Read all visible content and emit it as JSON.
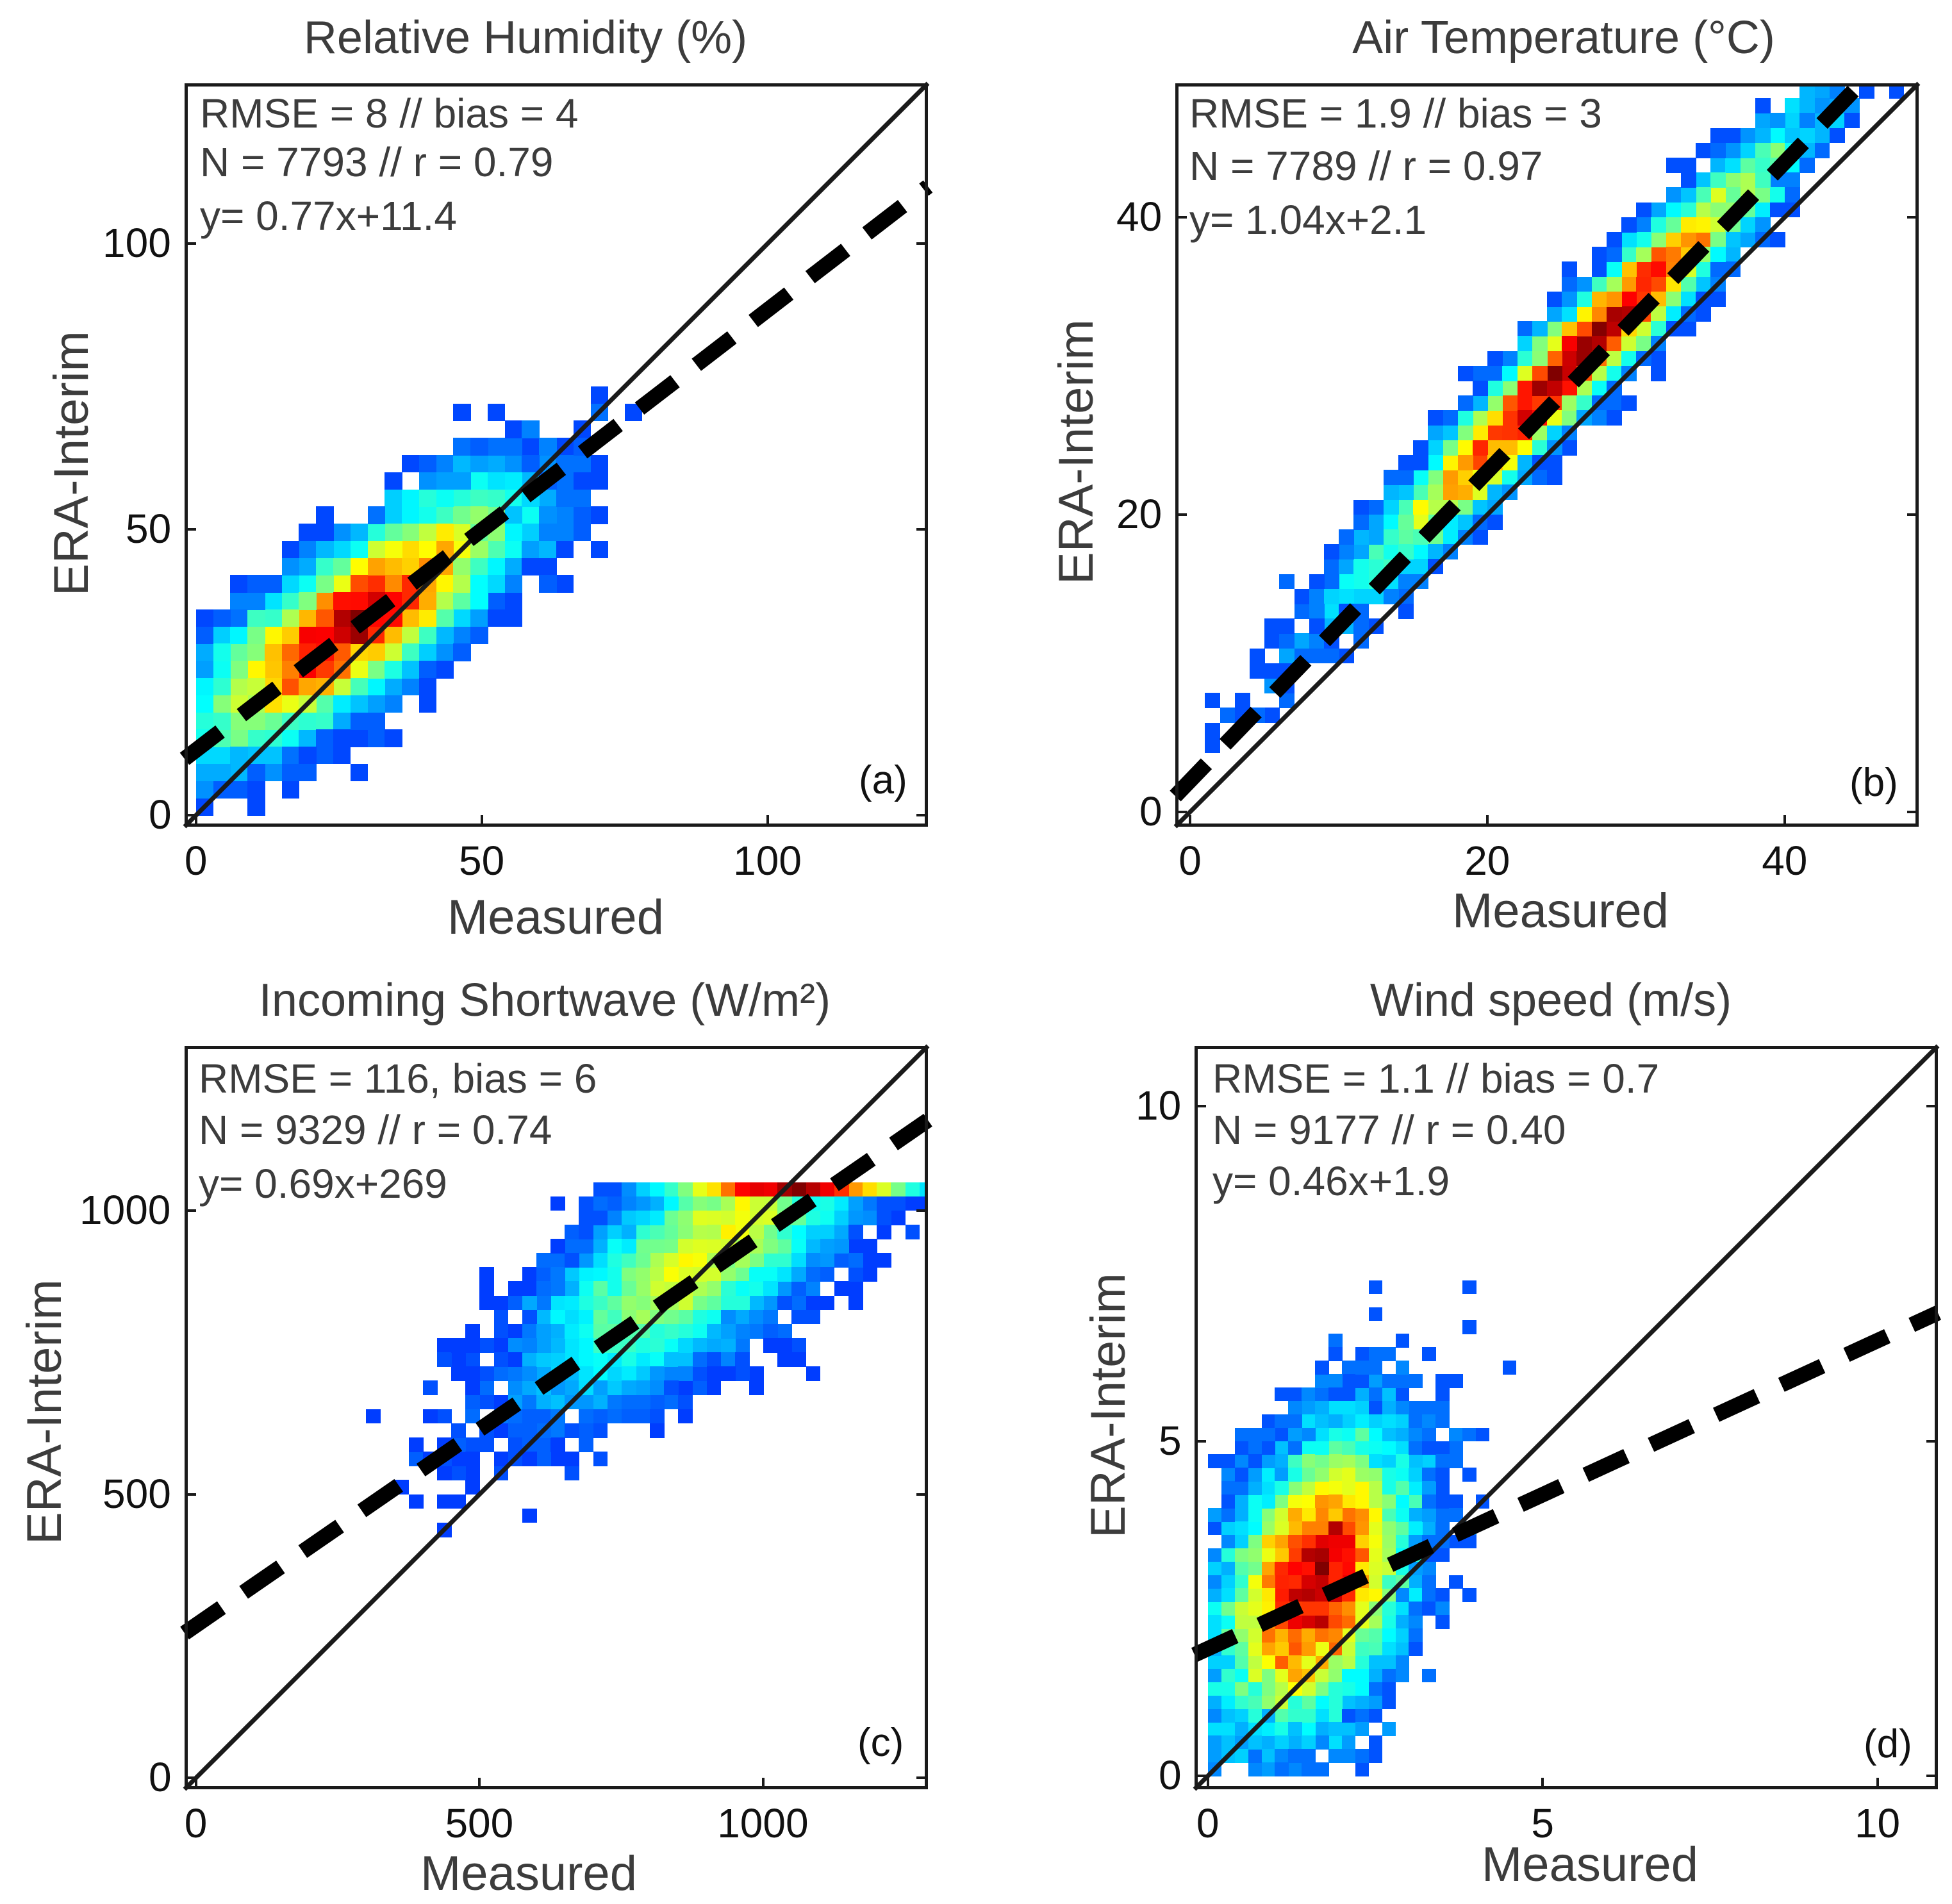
{
  "colors": {
    "frame": "#1a1a1a",
    "text": "#3c3c3c"
  },
  "chart_data": [
    {
      "id": "a",
      "type": "heatmap",
      "title": "Relative Humidity (%)",
      "xlabel": "Measured",
      "ylabel": "ERA-Interim",
      "xlim": [
        -2,
        128
      ],
      "ylim": [
        -2,
        128
      ],
      "xticks": [
        0,
        50,
        100
      ],
      "yticks": [
        0,
        50,
        100
      ],
      "xtick_labels": [
        "0",
        "50",
        "100"
      ],
      "ytick_labels": [
        "0",
        "50",
        "100"
      ],
      "stats": [
        "RMSE = 8 // bias = 4",
        "N = 7793 // r =  0.79",
        "y= 0.77x+11.4"
      ],
      "panel_label": "(a)",
      "one_to_one": true,
      "fit": {
        "slope": 0.77,
        "intercept": 11.4
      },
      "cloud": {
        "cx": 28,
        "cy": 34,
        "sx": 14,
        "sy": 11,
        "rho": 0.8,
        "count": 7793,
        "bin": 3
      }
    },
    {
      "id": "b",
      "type": "heatmap",
      "title": "Air Temperature (°C)",
      "xlabel": "Measured",
      "ylabel": "ERA-Interim",
      "xlim": [
        -1,
        49
      ],
      "ylim": [
        -1,
        49
      ],
      "xticks": [
        0,
        20,
        40
      ],
      "yticks": [
        0,
        20,
        40
      ],
      "xtick_labels": [
        "0",
        "20",
        "40"
      ],
      "ytick_labels": [
        "0",
        "20",
        "40"
      ],
      "stats": [
        "RMSE = 1.9 // bias = 3",
        "N = 7789 // r =  0.97",
        " y= 1.04x+2.1"
      ],
      "panel_label": "(b)",
      "one_to_one": true,
      "fit": {
        "slope": 1.04,
        "intercept": 2.1
      },
      "cloud": {
        "cx": 26,
        "cy": 30.5,
        "sx": 7,
        "sy": 7.2,
        "rho": 0.97,
        "count": 7789,
        "bin": 1
      }
    },
    {
      "id": "c",
      "type": "heatmap",
      "title": "Incoming Shortwave (W/m²)",
      "xlabel": "Measured",
      "ylabel": "ERA-Interim",
      "xlim": [
        -20,
        1290
      ],
      "ylim": [
        -20,
        1290
      ],
      "xticks": [
        0,
        500,
        1000
      ],
      "yticks": [
        0,
        500,
        1000
      ],
      "xtick_labels": [
        "0",
        "500",
        "1000"
      ],
      "ytick_labels": [
        "0",
        "500",
        "1000"
      ],
      "stats": [
        "RMSE = 116, bias = 6",
        "N = 9329 // r =  0.74",
        "y= 0.69x+269"
      ],
      "panel_label": "(c)",
      "one_to_one": true,
      "fit": {
        "slope": 0.69,
        "intercept": 269
      },
      "cloud": {
        "cx": 900,
        "cy": 930,
        "sx": 150,
        "sy": 130,
        "rho": 0.75,
        "count": 9329,
        "bin": 25,
        "ycap": 1050
      }
    },
    {
      "id": "d",
      "type": "heatmap",
      "title": "Wind speed (m/s)",
      "xlabel": "Measured",
      "ylabel": "ERA-Interim",
      "xlim": [
        -0.2,
        10.9
      ],
      "ylim": [
        -0.2,
        10.9
      ],
      "xticks": [
        0,
        5,
        10
      ],
      "yticks": [
        0,
        5,
        10
      ],
      "xtick_labels": [
        "0",
        "5",
        "10"
      ],
      "ytick_labels": [
        "0",
        "5",
        "10"
      ],
      "stats": [
        "RMSE = 1.1 // bias = 0.7",
        "N = 9177 // r =  0.40",
        "y= 0.46x+1.9"
      ],
      "panel_label": "(d)",
      "one_to_one": true,
      "fit": {
        "slope": 0.46,
        "intercept": 1.9
      },
      "cloud": {
        "cx": 1.6,
        "cy": 2.9,
        "sx": 0.7,
        "sy": 1.1,
        "rho": 0.4,
        "count": 9177,
        "bin": 0.2
      }
    }
  ]
}
